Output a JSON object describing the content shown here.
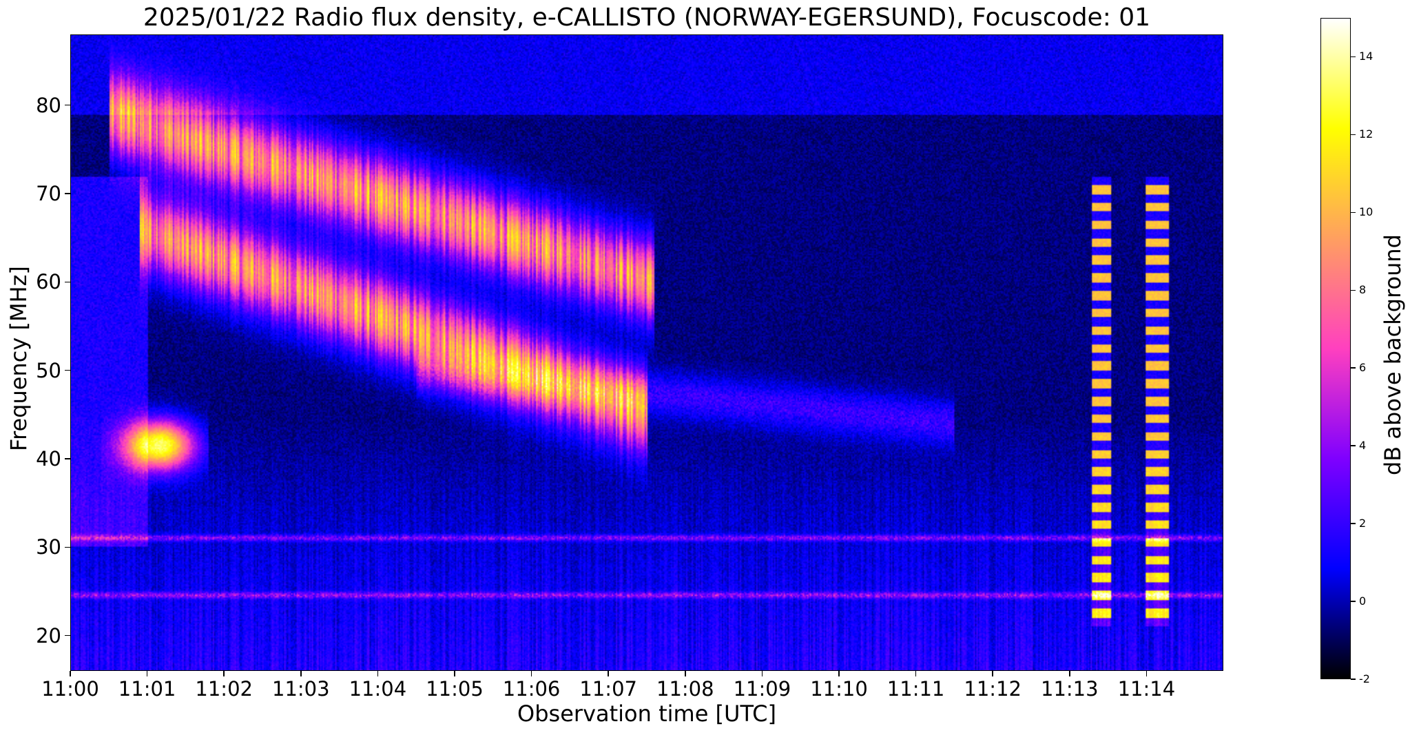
{
  "chart_data": {
    "type": "heatmap",
    "title": "2025/01/22  Radio flux density, e-CALLISTO (NORWAY-EGERSUND), Focuscode: 01",
    "xlabel": "Observation time [UTC]",
    "ylabel": "Frequency [MHz]",
    "colorbar_label": "dB above background",
    "x_ticks": [
      "11:00",
      "11:01",
      "11:02",
      "11:03",
      "11:04",
      "11:05",
      "11:06",
      "11:07",
      "11:08",
      "11:09",
      "11:10",
      "11:11",
      "11:12",
      "11:13",
      "11:14"
    ],
    "xlim_minutes": [
      0,
      15
    ],
    "y_ticks": [
      20,
      30,
      40,
      50,
      60,
      70,
      80
    ],
    "ylim": [
      16,
      88
    ],
    "colorbar_ticks": [
      -2,
      0,
      2,
      4,
      6,
      8,
      10,
      12,
      14
    ],
    "clim": [
      -2,
      15
    ],
    "colormap": "gnuplot2",
    "colormap_stops": [
      "#000000",
      "#0000ff",
      "#7f00ff",
      "#ff40bf",
      "#ff9f60",
      "#ffff00",
      "#ffffff"
    ],
    "features": [
      {
        "name": "type II burst upper branch",
        "t_start": 0.5,
        "t_end": 7.6,
        "f_start": 79,
        "f_end": 60,
        "peak_db": 11
      },
      {
        "name": "type II burst lower branch",
        "t_start": 0.9,
        "t_end": 7.5,
        "f_start": 66,
        "f_end": 45,
        "peak_db": 11
      },
      {
        "name": "faint drifting band",
        "t_start": 4.5,
        "t_end": 11.5,
        "f_start": 50,
        "f_end": 44,
        "peak_db": 3
      },
      {
        "name": "low frequency burst",
        "t_start": 0.4,
        "t_end": 1.8,
        "f_start": 44,
        "f_end": 38,
        "peak_db": 14
      },
      {
        "name": "interference band 1",
        "t_start": 13.3,
        "t_end": 13.55,
        "f_start": 72,
        "f_end": 21,
        "peak_db": 11
      },
      {
        "name": "interference band 2",
        "t_start": 14.0,
        "t_end": 14.3,
        "f_start": 72,
        "f_end": 21,
        "peak_db": 11
      },
      {
        "name": "RFI line",
        "t_start": 0,
        "t_end": 15,
        "f_start": 31,
        "f_end": 31,
        "peak_db": 6
      },
      {
        "name": "RFI line",
        "t_start": 0,
        "t_end": 15,
        "f_start": 24.5,
        "f_end": 24.5,
        "peak_db": 6
      }
    ]
  }
}
